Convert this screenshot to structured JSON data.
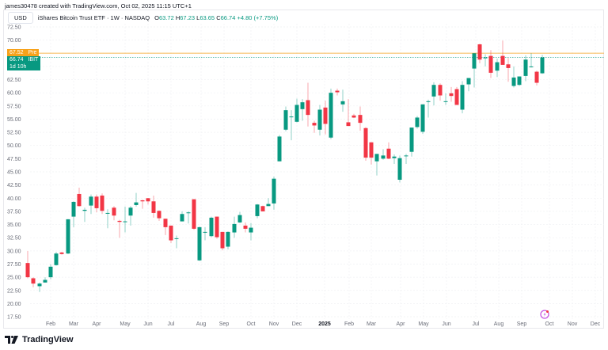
{
  "credit": "james30478 created with TradingView.com, Oct 02, 2025 11:15 UTC+1",
  "legend": {
    "currency": "USD",
    "symbol": "iShares Bitcoin Trust ETF · 1W · NASDAQ",
    "open_label": "O",
    "open": "63.72",
    "high_label": "H",
    "high": "67.23",
    "low_label": "L",
    "low": "63.65",
    "close_label": "C",
    "close": "66.74",
    "change": "+4.80 (+7.75%)"
  },
  "price_tags": {
    "pre_price": "67.52",
    "pre_label": "Pre",
    "last_price": "66.74",
    "last_label": "IBIT",
    "countdown": "1d 10h"
  },
  "brand": "TradingView",
  "colors": {
    "up": "#089981",
    "down": "#f23645",
    "pre": "#f7a21b",
    "event": "#c44fe0"
  },
  "chart_data": {
    "type": "candlestick",
    "title": "iShares Bitcoin Trust ETF · 1W · NASDAQ",
    "ylabel": "USD",
    "ylim": [
      17.5,
      72.5
    ],
    "yticks": [
      "72.50",
      "70.00",
      "67.50",
      "65.00",
      "62.50",
      "60.00",
      "57.50",
      "55.00",
      "52.50",
      "50.00",
      "47.50",
      "45.00",
      "42.50",
      "40.00",
      "37.50",
      "35.00",
      "32.50",
      "30.00",
      "27.50",
      "25.00",
      "22.50",
      "20.00",
      "17.50"
    ],
    "xticks": [
      {
        "label": "Feb",
        "x": 64
      },
      {
        "label": "Mar",
        "x": 93
      },
      {
        "label": "Apr",
        "x": 122
      },
      {
        "label": "May",
        "x": 158
      },
      {
        "label": "Jun",
        "x": 187
      },
      {
        "label": "Jul",
        "x": 216
      },
      {
        "label": "Aug",
        "x": 254
      },
      {
        "label": "Sep",
        "x": 283
      },
      {
        "label": "Oct",
        "x": 317
      },
      {
        "label": "Nov",
        "x": 346
      },
      {
        "label": "Dec",
        "x": 375
      },
      {
        "label": "2025",
        "x": 410,
        "bold": true
      },
      {
        "label": "Feb",
        "x": 441
      },
      {
        "label": "Mar",
        "x": 469
      },
      {
        "label": "Apr",
        "x": 506
      },
      {
        "label": "May",
        "x": 535
      },
      {
        "label": "Jun",
        "x": 564
      },
      {
        "label": "Jul",
        "x": 601
      },
      {
        "label": "Aug",
        "x": 630
      },
      {
        "label": "Sep",
        "x": 659
      },
      {
        "label": "Oct",
        "x": 694
      },
      {
        "label": "Nov",
        "x": 723
      },
      {
        "label": "Dec",
        "x": 752
      }
    ],
    "candles": [
      {
        "x": 35,
        "o": 27.7,
        "h": 30.0,
        "l": 24.8,
        "c": 25.0
      },
      {
        "x": 42,
        "o": 24.8,
        "h": 25.0,
        "l": 23.1,
        "c": 23.8
      },
      {
        "x": 50,
        "o": 23.3,
        "h": 24.0,
        "l": 22.2,
        "c": 23.8
      },
      {
        "x": 57,
        "o": 24.0,
        "h": 25.0,
        "l": 24.0,
        "c": 24.5
      },
      {
        "x": 64,
        "o": 25.0,
        "h": 27.5,
        "l": 24.6,
        "c": 27.0
      },
      {
        "x": 71,
        "o": 27.3,
        "h": 29.8,
        "l": 27.2,
        "c": 29.5
      },
      {
        "x": 78,
        "o": 29.7,
        "h": 29.8,
        "l": 29.3,
        "c": 29.4
      },
      {
        "x": 86,
        "o": 29.5,
        "h": 36.0,
        "l": 29.4,
        "c": 36.0
      },
      {
        "x": 93,
        "o": 36.5,
        "h": 39.4,
        "l": 34.5,
        "c": 39.3
      },
      {
        "x": 100,
        "o": 40.8,
        "h": 42.0,
        "l": 38.4,
        "c": 38.5
      },
      {
        "x": 107,
        "o": 37.6,
        "h": 38.2,
        "l": 35.5,
        "c": 37.8
      },
      {
        "x": 115,
        "o": 38.6,
        "h": 40.7,
        "l": 37.0,
        "c": 40.3
      },
      {
        "x": 122,
        "o": 40.3,
        "h": 40.7,
        "l": 37.3,
        "c": 38.1
      },
      {
        "x": 129,
        "o": 40.5,
        "h": 40.9,
        "l": 37.0,
        "c": 37.6
      },
      {
        "x": 136,
        "o": 37.2,
        "h": 37.9,
        "l": 34.3,
        "c": 37.2
      },
      {
        "x": 144,
        "o": 38.2,
        "h": 38.5,
        "l": 35.8,
        "c": 36.7
      },
      {
        "x": 151,
        "o": 35.7,
        "h": 35.9,
        "l": 32.5,
        "c": 35.5
      },
      {
        "x": 158,
        "o": 35.5,
        "h": 38.4,
        "l": 33.5,
        "c": 35.6
      },
      {
        "x": 165,
        "o": 36.7,
        "h": 38.5,
        "l": 34.8,
        "c": 38.2
      },
      {
        "x": 172,
        "o": 38.7,
        "h": 41.0,
        "l": 38.4,
        "c": 39.2
      },
      {
        "x": 180,
        "o": 39.6,
        "h": 39.7,
        "l": 38.0,
        "c": 39.4
      },
      {
        "x": 187,
        "o": 40.0,
        "h": 40.0,
        "l": 38.8,
        "c": 39.4
      },
      {
        "x": 194,
        "o": 39.4,
        "h": 40.5,
        "l": 36.3,
        "c": 37.2
      },
      {
        "x": 201,
        "o": 37.6,
        "h": 37.7,
        "l": 35.7,
        "c": 36.2
      },
      {
        "x": 209,
        "o": 36.1,
        "h": 35.6,
        "l": 33.0,
        "c": 34.5
      },
      {
        "x": 216,
        "o": 34.8,
        "h": 34.6,
        "l": 31.5,
        "c": 32.0
      },
      {
        "x": 223,
        "o": 32.3,
        "h": 32.9,
        "l": 30.5,
        "c": 32.4
      },
      {
        "x": 230,
        "o": 35.6,
        "h": 37.5,
        "l": 35.7,
        "c": 37.0
      },
      {
        "x": 238,
        "o": 37.2,
        "h": 37.5,
        "l": 35.2,
        "c": 37.3
      },
      {
        "x": 245,
        "o": 39.8,
        "h": 39.8,
        "l": 34.0,
        "c": 34.2
      },
      {
        "x": 252,
        "o": 28.2,
        "h": 34.6,
        "l": 28.1,
        "c": 34.5
      },
      {
        "x": 259,
        "o": 33.5,
        "h": 34.5,
        "l": 32.0,
        "c": 33.6
      },
      {
        "x": 267,
        "o": 32.8,
        "h": 36.5,
        "l": 32.6,
        "c": 36.3
      },
      {
        "x": 274,
        "o": 36.5,
        "h": 36.5,
        "l": 32.3,
        "c": 32.6
      },
      {
        "x": 281,
        "o": 33.6,
        "h": 33.6,
        "l": 30.1,
        "c": 30.5
      },
      {
        "x": 288,
        "o": 30.8,
        "h": 33.7,
        "l": 30.3,
        "c": 33.6
      },
      {
        "x": 296,
        "o": 33.5,
        "h": 36.5,
        "l": 32.5,
        "c": 35.1
      },
      {
        "x": 303,
        "o": 35.4,
        "h": 37.4,
        "l": 35.3,
        "c": 36.8
      },
      {
        "x": 310,
        "o": 34.8,
        "h": 35.4,
        "l": 33.5,
        "c": 34.2
      },
      {
        "x": 317,
        "o": 33.5,
        "h": 35.3,
        "l": 32.0,
        "c": 34.4
      },
      {
        "x": 325,
        "o": 36.6,
        "h": 38.9,
        "l": 36.2,
        "c": 38.8
      },
      {
        "x": 332,
        "o": 38.5,
        "h": 38.6,
        "l": 37.5,
        "c": 37.5
      },
      {
        "x": 339,
        "o": 38.5,
        "h": 40.0,
        "l": 38.5,
        "c": 38.9
      },
      {
        "x": 346,
        "o": 39.0,
        "h": 44.1,
        "l": 37.8,
        "c": 43.7
      },
      {
        "x": 353,
        "o": 47.0,
        "h": 52.0,
        "l": 47.0,
        "c": 51.7
      },
      {
        "x": 361,
        "o": 53.0,
        "h": 57.4,
        "l": 52.7,
        "c": 56.7
      },
      {
        "x": 368,
        "o": 55.5,
        "h": 56.7,
        "l": 51.0,
        "c": 55.5
      },
      {
        "x": 375,
        "o": 54.5,
        "h": 58.9,
        "l": 54.4,
        "c": 57.7
      },
      {
        "x": 382,
        "o": 56.9,
        "h": 58.8,
        "l": 54.7,
        "c": 58.2
      },
      {
        "x": 389,
        "o": 58.6,
        "h": 61.9,
        "l": 53.6,
        "c": 55.8
      },
      {
        "x": 397,
        "o": 54.3,
        "h": 54.7,
        "l": 52.4,
        "c": 53.8
      },
      {
        "x": 404,
        "o": 53.0,
        "h": 57.7,
        "l": 51.9,
        "c": 56.8
      },
      {
        "x": 411,
        "o": 57.2,
        "h": 58.5,
        "l": 52.1,
        "c": 54.1
      },
      {
        "x": 418,
        "o": 51.5,
        "h": 60.8,
        "l": 51.2,
        "c": 60.0
      },
      {
        "x": 426,
        "o": 60.4,
        "h": 60.8,
        "l": 59.5,
        "c": 60.1
      },
      {
        "x": 433,
        "o": 57.8,
        "h": 60.6,
        "l": 56.4,
        "c": 58.4
      },
      {
        "x": 440,
        "o": 54.4,
        "h": 58.8,
        "l": 53.9,
        "c": 53.7
      },
      {
        "x": 447,
        "o": 55.7,
        "h": 56.0,
        "l": 55.2,
        "c": 55.3
      },
      {
        "x": 455,
        "o": 55.8,
        "h": 57.4,
        "l": 52.8,
        "c": 54.3
      },
      {
        "x": 462,
        "o": 53.3,
        "h": 53.5,
        "l": 47.1,
        "c": 47.7
      },
      {
        "x": 469,
        "o": 50.6,
        "h": 50.6,
        "l": 46.4,
        "c": 47.7
      },
      {
        "x": 476,
        "o": 47.0,
        "h": 48.0,
        "l": 44.3,
        "c": 48.4
      },
      {
        "x": 484,
        "o": 47.5,
        "h": 49.3,
        "l": 47.3,
        "c": 48.1
      },
      {
        "x": 491,
        "o": 49.4,
        "h": 50.6,
        "l": 47.4,
        "c": 47.5
      },
      {
        "x": 498,
        "o": 47.6,
        "h": 48.3,
        "l": 46.5,
        "c": 47.9
      },
      {
        "x": 505,
        "o": 43.5,
        "h": 48.1,
        "l": 43.0,
        "c": 47.6
      },
      {
        "x": 513,
        "o": 48.1,
        "h": 48.4,
        "l": 46.5,
        "c": 48.1
      },
      {
        "x": 520,
        "o": 48.8,
        "h": 50.6,
        "l": 47.9,
        "c": 53.4
      },
      {
        "x": 527,
        "o": 53.5,
        "h": 55.6,
        "l": 53.2,
        "c": 55.3
      },
      {
        "x": 534,
        "o": 52.6,
        "h": 56.8,
        "l": 52.2,
        "c": 57.8
      },
      {
        "x": 541,
        "o": 58.4,
        "h": 58.7,
        "l": 55.3,
        "c": 58.4
      },
      {
        "x": 548,
        "o": 59.3,
        "h": 62.0,
        "l": 57.6,
        "c": 61.5
      },
      {
        "x": 556,
        "o": 61.5,
        "h": 61.8,
        "l": 58.5,
        "c": 59.5
      },
      {
        "x": 563,
        "o": 58.3,
        "h": 59.9,
        "l": 57.7,
        "c": 58.4
      },
      {
        "x": 570,
        "o": 59.9,
        "h": 61.1,
        "l": 58.3,
        "c": 59.4
      },
      {
        "x": 577,
        "o": 60.7,
        "h": 61.1,
        "l": 58.2,
        "c": 57.7
      },
      {
        "x": 584,
        "o": 56.8,
        "h": 62.2,
        "l": 56.1,
        "c": 61.5
      },
      {
        "x": 592,
        "o": 61.6,
        "h": 62.4,
        "l": 60.3,
        "c": 62.8
      },
      {
        "x": 599,
        "o": 64.6,
        "h": 65.3,
        "l": 61.0,
        "c": 67.5
      },
      {
        "x": 606,
        "o": 69.2,
        "h": 69.3,
        "l": 65.6,
        "c": 66.3
      },
      {
        "x": 613,
        "o": 66.7,
        "h": 67.3,
        "l": 65.0,
        "c": 66.7
      },
      {
        "x": 620,
        "o": 67.0,
        "h": 68.1,
        "l": 62.8,
        "c": 63.8
      },
      {
        "x": 628,
        "o": 64.2,
        "h": 66.5,
        "l": 63.0,
        "c": 65.8
      },
      {
        "x": 635,
        "o": 67.0,
        "h": 69.9,
        "l": 66.3,
        "c": 65.3
      },
      {
        "x": 642,
        "o": 65.4,
        "h": 66.6,
        "l": 62.1,
        "c": 64.7
      },
      {
        "x": 649,
        "o": 61.3,
        "h": 65.0,
        "l": 61.0,
        "c": 62.9
      },
      {
        "x": 656,
        "o": 61.5,
        "h": 62.6,
        "l": 61.3,
        "c": 63.1
      },
      {
        "x": 664,
        "o": 63.2,
        "h": 67.1,
        "l": 62.2,
        "c": 66.3
      },
      {
        "x": 671,
        "o": 65.0,
        "h": 67.5,
        "l": 64.8,
        "c": 65.0
      },
      {
        "x": 678,
        "o": 64.0,
        "h": 64.2,
        "l": 61.4,
        "c": 61.9
      },
      {
        "x": 685,
        "o": 63.7,
        "h": 67.2,
        "l": 63.6,
        "c": 66.7
      }
    ],
    "price_lines": [
      {
        "label": "Pre",
        "value": 67.52,
        "color": "#f7a21b"
      },
      {
        "label": "IBIT",
        "value": 66.74,
        "color": "#089981"
      }
    ],
    "grid": true,
    "y_axis_position": "left"
  }
}
